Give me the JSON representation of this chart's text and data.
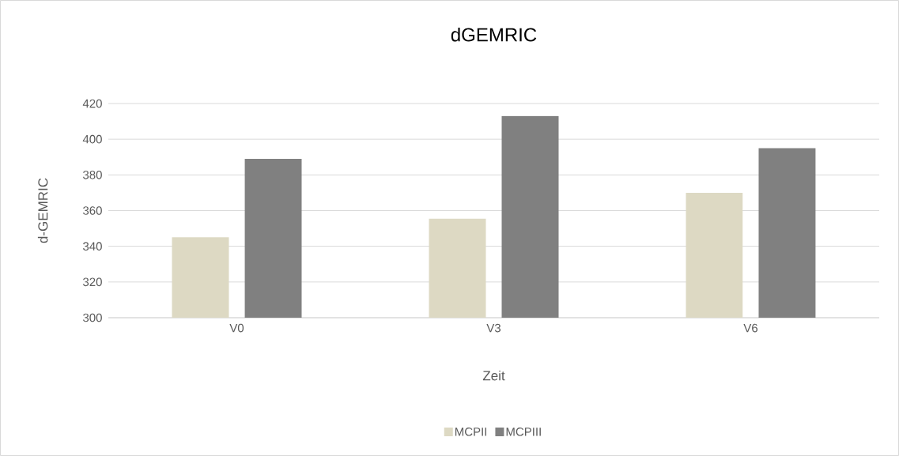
{
  "chart_data": {
    "type": "bar",
    "title": "dGEMRIC",
    "xlabel": "Zeit",
    "ylabel": "d-GEMRIC",
    "categories": [
      "V0",
      "V3",
      "V6"
    ],
    "series": [
      {
        "name": "MCPII",
        "color": "#ddd9c3",
        "values": [
          345,
          355.5,
          370
        ]
      },
      {
        "name": "MCPIII",
        "color": "#808080",
        "values": [
          389,
          413,
          395
        ]
      }
    ],
    "ylim": [
      300,
      420
    ],
    "yticks": [
      300,
      320,
      340,
      360,
      380,
      400,
      420
    ],
    "grid": "y",
    "legend": "bottom"
  }
}
